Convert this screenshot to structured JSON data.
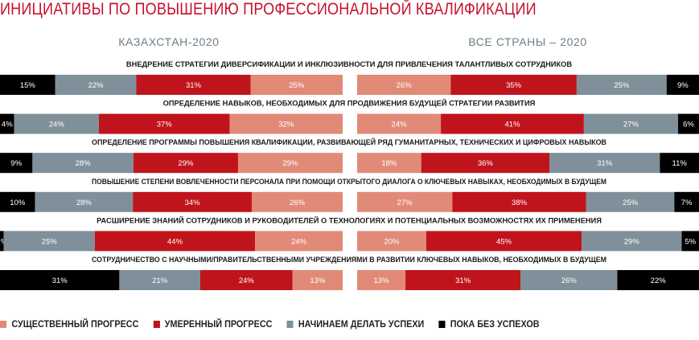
{
  "title": "ИНИЦИАТИВЫ ПО ПОВЫШЕНИЮ ПРОФЕССИОНАЛЬНОЙ КВАЛИФИКАЦИИ",
  "chart_data": {
    "type": "bar",
    "orientation": "horizontal",
    "stacked": true,
    "panels": [
      {
        "title": "КАЗАХСТАН-2020",
        "order": [
          "Пока без успехов",
          "Начинаем делать успехи",
          "Умеренный прогресс",
          "Существенный прогресс"
        ]
      },
      {
        "title": "ВСЕ СТРАНЫ – 2020",
        "order": [
          "Существенный прогресс",
          "Умеренный прогресс",
          "Начинаем делать успехи",
          "Пока без успехов"
        ]
      }
    ],
    "categories": [
      "ВНЕДРЕНИЕ СТРАТЕГИИ ДИВЕРСИФИКАЦИИ И ИНКЛЮЗИВНОСТИ ДЛЯ ПРИВЛЕЧЕНИЯ ТАЛАНТЛИВЫХ СОТРУДНИКОВ",
      "ОПРЕДЕЛЕНИЕ НАВЫКОВ, НЕОБХОДИМЫХ ДЛЯ ПРОДВИЖЕНИЯ БУДУЩЕЙ СТРАТЕГИИ РАЗВИТИЯ",
      "ОПРЕДЕЛЕНИЕ ПРОГРАММЫ ПОВЫШЕНИЯ КВАЛИФИКАЦИИ, РАЗВИВАЮЩЕЙ РЯД ГУМАНИТАРНЫХ, ТЕХНИЧЕСКИХ И ЦИФРОВЫХ НАВЫКОВ",
      "ПОВЫШЕНИЕ СТЕПЕНИ ВОВЛЕЧЕННОСТИ ПЕРСОНАЛА ПРИ ПОМОЩИ ОТКРЫТОГО ДИАЛОГА О КЛЮЧЕВЫХ НАВЫКАХ, НЕОБХОДИМЫХ В БУДУЩЕМ",
      "РАСШИРЕНИЕ ЗНАНИЙ СОТРУДНИКОВ И РУКОВОДИТЕЛЕЙ О ТЕХНОЛОГИЯХ И ПОТЕНЦИАЛЬНЫХ ВОЗМОЖНОСТЯХ ИХ ПРИМЕНЕНИЯ",
      "СОТРУДНИЧЕСТВО С НАУЧНЫМИ/ПРАВИТЕЛЬСТВЕННЫМИ УЧРЕЖДЕНИЯМИ В РАЗВИТИИ КЛЮЧЕВЫХ НАВЫКОВ, НЕОБХОДИМЫХ В БУДУЩЕМ"
    ],
    "series": [
      {
        "name": "Существенный прогресс",
        "legend": "СУЩЕСТВЕННЫЙ ПРОГРЕСС",
        "color": "#e28a78",
        "kz": [
          25,
          32,
          29,
          26,
          24,
          13
        ],
        "all": [
          26,
          24,
          18,
          27,
          20,
          13
        ]
      },
      {
        "name": "Умеренный прогресс",
        "legend": "УМЕРЕННЫЙ ПРОГРЕСС",
        "color": "#c0141c",
        "kz": [
          31,
          37,
          29,
          34,
          44,
          24
        ],
        "all": [
          35,
          41,
          36,
          38,
          45,
          31
        ]
      },
      {
        "name": "Начинаем делать успехи",
        "legend": "НАЧИНАЕМ ДЕЛАТЬ УСПЕХИ",
        "color": "#7f909b",
        "kz": [
          22,
          24,
          28,
          28,
          25,
          21
        ],
        "all": [
          25,
          27,
          31,
          25,
          29,
          26
        ]
      },
      {
        "name": "Пока без успехов",
        "legend": "ПОКА БЕЗ УСПЕХОВ",
        "color": "#000000",
        "kz": [
          15,
          4,
          9,
          10,
          1,
          31
        ],
        "all": [
          9,
          6,
          11,
          7,
          5,
          22
        ]
      }
    ],
    "value_suffix": "%",
    "legend_position": "bottom-left",
    "grid": false
  }
}
